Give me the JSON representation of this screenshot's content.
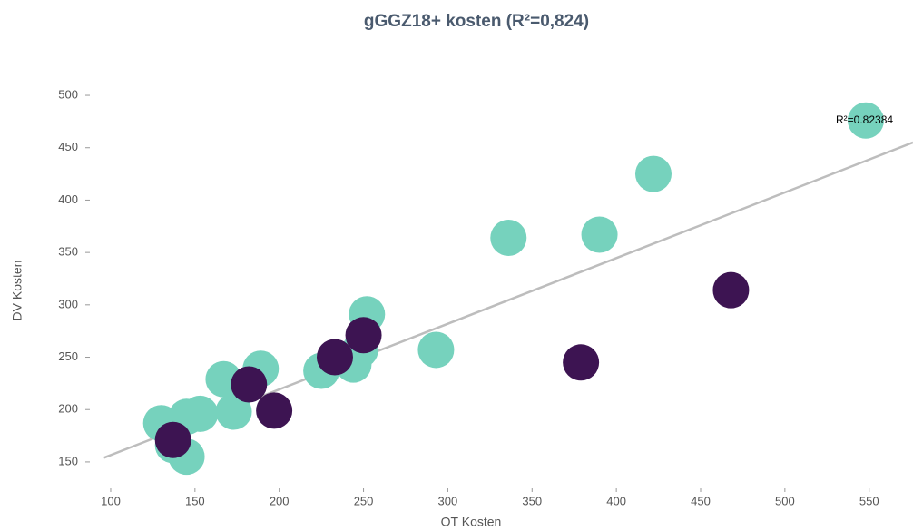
{
  "chart_data": {
    "type": "scatter",
    "title": "gGGZ18+ kosten (R²=0,824)",
    "x_label": "OT Kosten",
    "y_label": "DV Kosten",
    "xlim": [
      90,
      576
    ],
    "ylim": [
      130,
      510
    ],
    "xticks": [
      100,
      150,
      200,
      250,
      300,
      350,
      400,
      450,
      500,
      550
    ],
    "yticks": [
      150,
      200,
      250,
      300,
      350,
      400,
      450,
      500
    ],
    "series": [
      {
        "color": "#76d2bd",
        "x": [
          548,
          422,
          336,
          390,
          293,
          252,
          248,
          244,
          225,
          189,
          167,
          173,
          153,
          130,
          137,
          145,
          145
        ],
        "values": [
          476,
          425,
          364,
          367,
          257,
          291,
          257,
          243,
          237,
          239,
          229,
          198,
          196,
          187,
          166,
          155,
          193
        ]
      },
      {
        "color": "#3d1452",
        "x": [
          468,
          379,
          250,
          233,
          182,
          197,
          137
        ],
        "values": [
          314,
          245,
          271,
          250,
          224,
          199,
          171
        ]
      }
    ],
    "trendline": {
      "x": [
        96,
        576
      ],
      "y": [
        154,
        455
      ],
      "color": "#bdbdbd",
      "label": "R²=0.82384"
    }
  }
}
